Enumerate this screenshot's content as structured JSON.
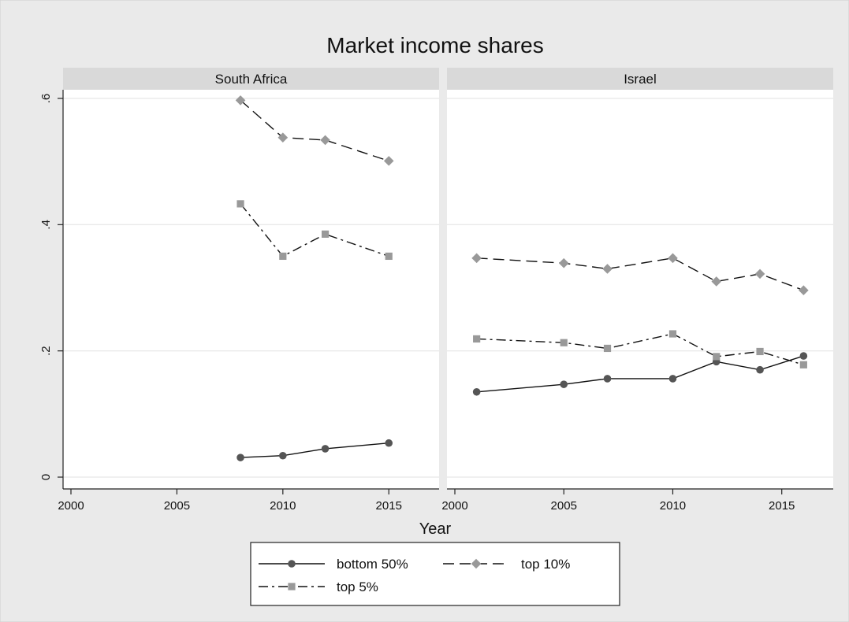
{
  "colors": {
    "outer_bg": "#eaeaea",
    "plot_bg": "#ffffff",
    "strip_bg": "#d9d9d9",
    "grid": "#e6e6e6",
    "bottom_series": "#555555",
    "top_series": "#999999",
    "line": "#111111"
  },
  "chart_data": {
    "type": "line",
    "title": "Market income shares",
    "xlabel": "Year",
    "ylabel": "",
    "ylim": [
      0,
      0.6
    ],
    "y_ticks": [
      0,
      0.2,
      0.4,
      0.6
    ],
    "y_tick_labels": [
      "0",
      ".2",
      ".4",
      ".6"
    ],
    "x_ticks": [
      2000,
      2005,
      2010,
      2015
    ],
    "x_tick_labels": [
      "2000",
      "2005",
      "2010",
      "2015"
    ],
    "grid": true,
    "legend_position": "bottom",
    "legend": [
      "bottom 50%",
      "top 10%",
      "top 5%"
    ],
    "panels": [
      {
        "title": "South Africa",
        "xlim": [
          2000,
          2017
        ],
        "series": [
          {
            "name": "bottom 50%",
            "marker": "circle",
            "dash": "solid",
            "x": [
              2008,
              2010,
              2012,
              2015
            ],
            "y": [
              0.031,
              0.034,
              0.045,
              0.054
            ]
          },
          {
            "name": "top 10%",
            "marker": "diamond",
            "dash": "dash",
            "x": [
              2008,
              2010,
              2012,
              2015
            ],
            "y": [
              0.597,
              0.538,
              0.534,
              0.501
            ]
          },
          {
            "name": "top 5%",
            "marker": "square",
            "dash": "dashdot",
            "x": [
              2008,
              2010,
              2012,
              2015
            ],
            "y": [
              0.433,
              0.35,
              0.385,
              0.35
            ]
          }
        ]
      },
      {
        "title": "Israel",
        "xlim": [
          2000,
          2017
        ],
        "series": [
          {
            "name": "bottom 50%",
            "marker": "circle",
            "dash": "solid",
            "x": [
              2001,
              2005,
              2007,
              2010,
              2012,
              2014,
              2016
            ],
            "y": [
              0.135,
              0.147,
              0.156,
              0.156,
              0.183,
              0.17,
              0.192
            ]
          },
          {
            "name": "top 10%",
            "marker": "diamond",
            "dash": "dash",
            "x": [
              2001,
              2005,
              2007,
              2010,
              2012,
              2014,
              2016
            ],
            "y": [
              0.347,
              0.339,
              0.33,
              0.347,
              0.31,
              0.322,
              0.296
            ]
          },
          {
            "name": "top 5%",
            "marker": "square",
            "dash": "dashdot",
            "x": [
              2001,
              2005,
              2007,
              2010,
              2012,
              2014,
              2016
            ],
            "y": [
              0.219,
              0.213,
              0.204,
              0.227,
              0.191,
              0.199,
              0.178
            ]
          }
        ]
      }
    ]
  }
}
